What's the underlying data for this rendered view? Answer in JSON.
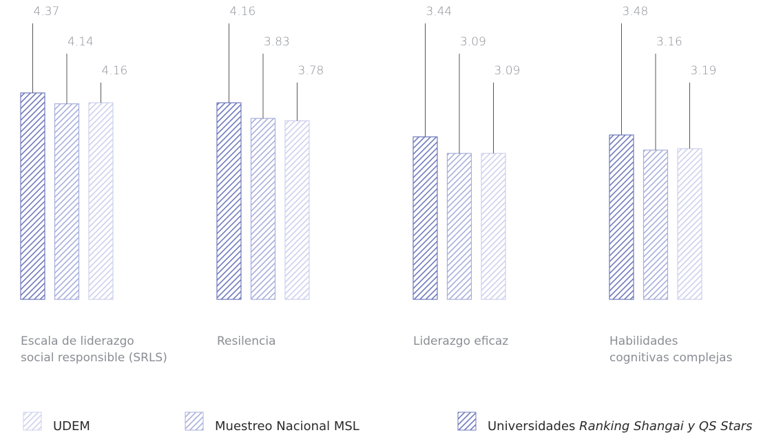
{
  "chart_data": {
    "type": "bar",
    "categories": [
      [
        "Escala de liderazgo",
        "social responsible (SRLS)"
      ],
      [
        "Resilencia"
      ],
      [
        "Liderazgo eficaz"
      ],
      [
        "Habilidades",
        "cognitivas complejas"
      ]
    ],
    "series": [
      {
        "name": "Universidades Ranking Shangai y QS Stars",
        "name_plain": "Universidades ",
        "name_italic": "Ranking Shangai y QS Stars",
        "color": "#6e79bb",
        "values": [
          4.37,
          4.16,
          3.44,
          3.48
        ]
      },
      {
        "name": "Muestreo Nacional MSL",
        "color": "#a7aedb",
        "values": [
          4.14,
          3.83,
          3.09,
          3.16
        ]
      },
      {
        "name": "UDEM",
        "color": "#ccd0ec",
        "values": [
          4.16,
          3.78,
          3.09,
          3.19
        ]
      }
    ],
    "value_labels": [
      [
        "4.37",
        "4.14",
        "4.16"
      ],
      [
        "4.16",
        "3.83",
        "3.78"
      ],
      [
        "3.44",
        "3.09",
        "3.09"
      ],
      [
        "3.48",
        "3.16",
        "3.19"
      ]
    ],
    "legend_order": [
      "UDEM",
      "Muestreo Nacional MSL",
      "Universidades Ranking Shangai y QS Stars"
    ],
    "legend_position": "bottom",
    "bar_fill": "diagonal-hatch",
    "leader_line_color": "#555555",
    "label_color": "#8a8d94"
  }
}
